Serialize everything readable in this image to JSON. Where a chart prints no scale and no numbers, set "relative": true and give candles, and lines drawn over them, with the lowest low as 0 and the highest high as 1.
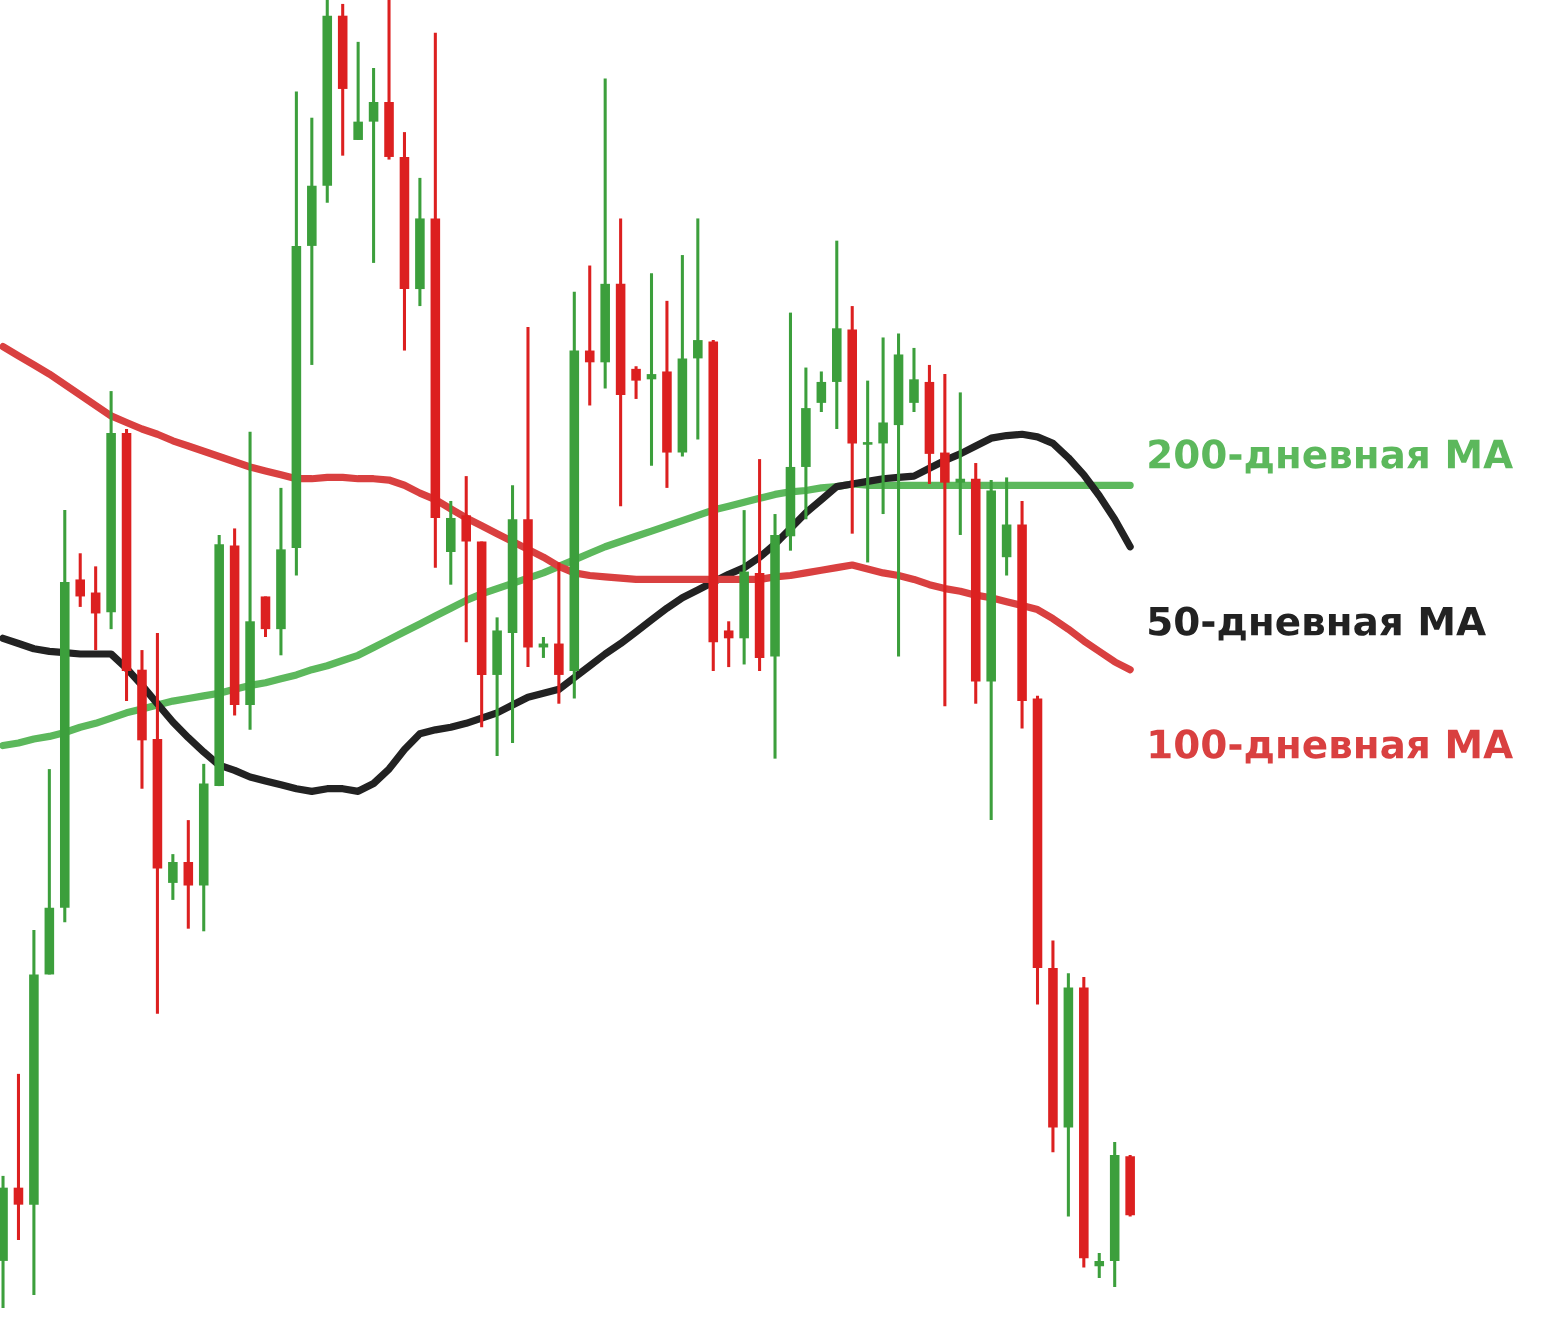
{
  "chart_data": {
    "type": "candlestick",
    "relative": true,
    "tick_labels": false,
    "legend": false,
    "categories": [
      null,
      null,
      null,
      null,
      null,
      null,
      null,
      null,
      null,
      null,
      null,
      null,
      null,
      null,
      null,
      null,
      null,
      null,
      null,
      null,
      null,
      null,
      null,
      null,
      null,
      null,
      null,
      null,
      null,
      null,
      null,
      null,
      null,
      null,
      null,
      null,
      null,
      null,
      null,
      null,
      null,
      null,
      null,
      null,
      null,
      null,
      null,
      null,
      null,
      null,
      null,
      null,
      null,
      null,
      null,
      null,
      null,
      null,
      null,
      null,
      null,
      null,
      null,
      null,
      null,
      null,
      null,
      null,
      null,
      null,
      null,
      null,
      null,
      null
    ],
    "ohlc": [
      [
        0.036,
        0.101,
        0,
        0.092
      ],
      [
        0.092,
        0.179,
        0.052,
        0.079
      ],
      [
        0.079,
        0.289,
        0.01,
        0.255
      ],
      [
        0.255,
        0.412,
        0.255,
        0.306
      ],
      [
        0.306,
        0.61,
        0.295,
        0.555
      ],
      [
        0.557,
        0.577,
        0.536,
        0.544
      ],
      [
        0.547,
        0.567,
        0.503,
        0.531
      ],
      [
        0.532,
        0.701,
        0.519,
        0.669
      ],
      [
        0.669,
        0.672,
        0.464,
        0.487
      ],
      [
        0.488,
        0.503,
        0.397,
        0.434
      ],
      [
        0.435,
        0.516,
        0.225,
        0.336
      ],
      [
        0.325,
        0.347,
        0.312,
        0.341
      ],
      [
        0.341,
        0.373,
        0.29,
        0.323
      ],
      [
        0.323,
        0.416,
        0.288,
        0.401
      ],
      [
        0.399,
        0.591,
        0.399,
        0.584
      ],
      [
        0.583,
        0.596,
        0.453,
        0.461
      ],
      [
        0.461,
        0.67,
        0.442,
        0.525
      ],
      [
        0.544,
        0.544,
        0.513,
        0.519
      ],
      [
        0.519,
        0.627,
        0.499,
        0.58
      ],
      [
        0.581,
        0.93,
        0.56,
        0.812
      ],
      [
        0.812,
        0.91,
        0.721,
        0.858
      ],
      [
        0.858,
        1,
        0.845,
        0.988
      ],
      [
        0.988,
        0.997,
        0.881,
        0.932
      ],
      [
        0.893,
        0.968,
        0.893,
        0.907
      ],
      [
        0.907,
        0.948,
        0.799,
        0.922
      ],
      [
        0.922,
        1,
        0.878,
        0.88
      ],
      [
        0.88,
        0.899,
        0.732,
        0.779
      ],
      [
        0.779,
        0.864,
        0.766,
        0.833
      ],
      [
        0.833,
        0.975,
        0.566,
        0.604
      ],
      [
        0.578,
        0.617,
        0.553,
        0.604
      ],
      [
        0.606,
        0.636,
        0.509,
        0.586
      ],
      [
        0.586,
        0.586,
        0.444,
        0.484
      ],
      [
        0.484,
        0.528,
        0.422,
        0.518
      ],
      [
        0.516,
        0.629,
        0.432,
        0.603
      ],
      [
        0.603,
        0.75,
        0.49,
        0.505
      ],
      [
        0.505,
        0.513,
        0.497,
        0.508
      ],
      [
        0.508,
        0.57,
        0.462,
        0.484
      ],
      [
        0.487,
        0.777,
        0.466,
        0.732
      ],
      [
        0.732,
        0.797,
        0.69,
        0.723
      ],
      [
        0.723,
        0.94,
        0.703,
        0.783
      ],
      [
        0.783,
        0.833,
        0.613,
        0.698
      ],
      [
        0.718,
        0.72,
        0.695,
        0.709
      ],
      [
        0.71,
        0.791,
        0.644,
        0.714
      ],
      [
        0.716,
        0.77,
        0.627,
        0.654
      ],
      [
        0.654,
        0.805,
        0.651,
        0.726
      ],
      [
        0.726,
        0.833,
        0.664,
        0.74
      ],
      [
        0.739,
        0.74,
        0.487,
        0.509
      ],
      [
        0.518,
        0.525,
        0.49,
        0.512
      ],
      [
        0.512,
        0.61,
        0.492,
        0.563
      ],
      [
        0.562,
        0.649,
        0.487,
        0.497
      ],
      [
        0.498,
        0.607,
        0.42,
        0.591
      ],
      [
        0.59,
        0.761,
        0.579,
        0.643
      ],
      [
        0.643,
        0.719,
        0.603,
        0.688
      ],
      [
        0.692,
        0.716,
        0.685,
        0.708
      ],
      [
        0.708,
        0.816,
        0.672,
        0.749
      ],
      [
        0.748,
        0.766,
        0.592,
        0.661
      ],
      [
        0.66,
        0.709,
        0.57,
        0.662
      ],
      [
        0.661,
        0.742,
        0.607,
        0.677
      ],
      [
        0.675,
        0.745,
        0.498,
        0.729
      ],
      [
        0.692,
        0.734,
        0.685,
        0.71
      ],
      [
        0.708,
        0.721,
        0.63,
        0.653
      ],
      [
        0.654,
        0.714,
        0.46,
        0.631
      ],
      [
        0.631,
        0.7,
        0.591,
        0.634
      ],
      [
        0.634,
        0.646,
        0.462,
        0.479
      ],
      [
        0.479,
        0.633,
        0.373,
        0.625
      ],
      [
        0.574,
        0.635,
        0.56,
        0.599
      ],
      [
        0.599,
        0.617,
        0.443,
        0.464
      ],
      [
        0.466,
        0.468,
        0.232,
        0.26
      ],
      [
        0.26,
        0.281,
        0.119,
        0.138
      ],
      [
        0.138,
        0.256,
        0.07,
        0.245
      ],
      [
        0.245,
        0.253,
        0.031,
        0.038
      ],
      [
        0.032,
        0.042,
        0.023,
        0.036
      ],
      [
        0.036,
        0.127,
        0.016,
        0.117
      ],
      [
        0.116,
        0.117,
        0.07,
        0.071
      ]
    ],
    "colors": [
      "#3c9f3c",
      "#dc2020",
      "#3c9f3c",
      "#3c9f3c",
      "#3c9f3c",
      "#dc2020",
      "#dc2020",
      "#3c9f3c",
      "#dc2020",
      "#dc2020",
      "#dc2020",
      "#3c9f3c",
      "#dc2020",
      "#3c9f3c",
      "#3c9f3c",
      "#dc2020",
      "#3c9f3c",
      "#dc2020",
      "#3c9f3c",
      "#3c9f3c",
      "#3c9f3c",
      "#3c9f3c",
      "#dc2020",
      "#3c9f3c",
      "#3c9f3c",
      "#dc2020",
      "#dc2020",
      "#3c9f3c",
      "#dc2020",
      "#3c9f3c",
      "#dc2020",
      "#dc2020",
      "#3c9f3c",
      "#3c9f3c",
      "#dc2020",
      "#3c9f3c",
      "#dc2020",
      "#3c9f3c",
      "#dc2020",
      "#3c9f3c",
      "#dc2020",
      "#dc2020",
      "#3c9f3c",
      "#dc2020",
      "#3c9f3c",
      "#3c9f3c",
      "#dc2020",
      "#dc2020",
      "#3c9f3c",
      "#dc2020",
      "#3c9f3c",
      "#3c9f3c",
      "#3c9f3c",
      "#3c9f3c",
      "#3c9f3c",
      "#dc2020",
      "#3c9f3c",
      "#3c9f3c",
      "#3c9f3c",
      "#3c9f3c",
      "#dc2020",
      "#dc2020",
      "#3c9f3c",
      "#dc2020",
      "#3c9f3c",
      "#3c9f3c",
      "#dc2020",
      "#dc2020",
      "#dc2020",
      "#3c9f3c",
      "#dc2020",
      "#3c9f3c",
      "#3c9f3c",
      "#dc2020"
    ],
    "series": [
      {
        "name": "200-дневная MA",
        "type": "line",
        "color": "#5cb85c",
        "values": [
          0.43,
          0.432,
          0.435,
          0.437,
          0.44,
          0.444,
          0.447,
          0.451,
          0.455,
          0.458,
          0.461,
          0.464,
          0.466,
          0.468,
          0.47,
          0.473,
          0.476,
          0.478,
          0.481,
          0.484,
          0.488,
          0.491,
          0.495,
          0.499,
          0.505,
          0.511,
          0.517,
          0.523,
          0.529,
          0.535,
          0.541,
          0.546,
          0.55,
          0.554,
          0.558,
          0.562,
          0.567,
          0.572,
          0.577,
          0.582,
          0.586,
          0.59,
          0.594,
          0.598,
          0.602,
          0.606,
          0.61,
          0.613,
          0.616,
          0.619,
          0.622,
          0.624,
          0.625,
          0.627,
          0.628,
          0.63,
          0.629,
          0.629,
          0.629,
          0.629,
          0.629,
          0.629,
          0.629,
          0.629,
          0.629,
          0.629,
          0.629,
          0.629,
          0.629,
          0.629,
          0.629,
          0.629,
          0.629,
          0.629
        ]
      },
      {
        "name": "50-дневная MA",
        "type": "line",
        "color": "#222222",
        "values": [
          0.512,
          0.508,
          0.504,
          0.502,
          0.501,
          0.5,
          0.5,
          0.5,
          0.489,
          0.476,
          0.462,
          0.448,
          0.436,
          0.425,
          0.415,
          0.411,
          0.406,
          0.403,
          0.4,
          0.397,
          0.395,
          0.397,
          0.397,
          0.395,
          0.401,
          0.412,
          0.427,
          0.439,
          0.442,
          0.444,
          0.447,
          0.451,
          0.455,
          0.461,
          0.467,
          0.47,
          0.473,
          0.482,
          0.491,
          0.5,
          0.508,
          0.517,
          0.526,
          0.535,
          0.543,
          0.549,
          0.555,
          0.561,
          0.566,
          0.574,
          0.584,
          0.596,
          0.608,
          0.618,
          0.628,
          0.63,
          0.632,
          0.634,
          0.635,
          0.636,
          0.642,
          0.648,
          0.653,
          0.659,
          0.665,
          0.667,
          0.668,
          0.666,
          0.661,
          0.65,
          0.637,
          0.621,
          0.603,
          0.582
        ]
      },
      {
        "name": "100-дневная MA",
        "type": "line",
        "color": "#d94040",
        "values": [
          0.735,
          0.728,
          0.721,
          0.714,
          0.706,
          0.698,
          0.69,
          0.682,
          0.677,
          0.672,
          0.668,
          0.663,
          0.659,
          0.655,
          0.651,
          0.647,
          0.643,
          0.64,
          0.637,
          0.634,
          0.634,
          0.635,
          0.635,
          0.634,
          0.634,
          0.633,
          0.629,
          0.623,
          0.618,
          0.611,
          0.604,
          0.598,
          0.592,
          0.586,
          0.58,
          0.574,
          0.567,
          0.562,
          0.56,
          0.559,
          0.558,
          0.557,
          0.557,
          0.557,
          0.557,
          0.557,
          0.557,
          0.557,
          0.557,
          0.557,
          0.559,
          0.56,
          0.562,
          0.564,
          0.566,
          0.568,
          0.565,
          0.562,
          0.56,
          0.557,
          0.553,
          0.55,
          0.548,
          0.545,
          0.543,
          0.54,
          0.537,
          0.534,
          0.527,
          0.519,
          0.51,
          0.502,
          0.494,
          0.488
        ]
      }
    ]
  }
}
